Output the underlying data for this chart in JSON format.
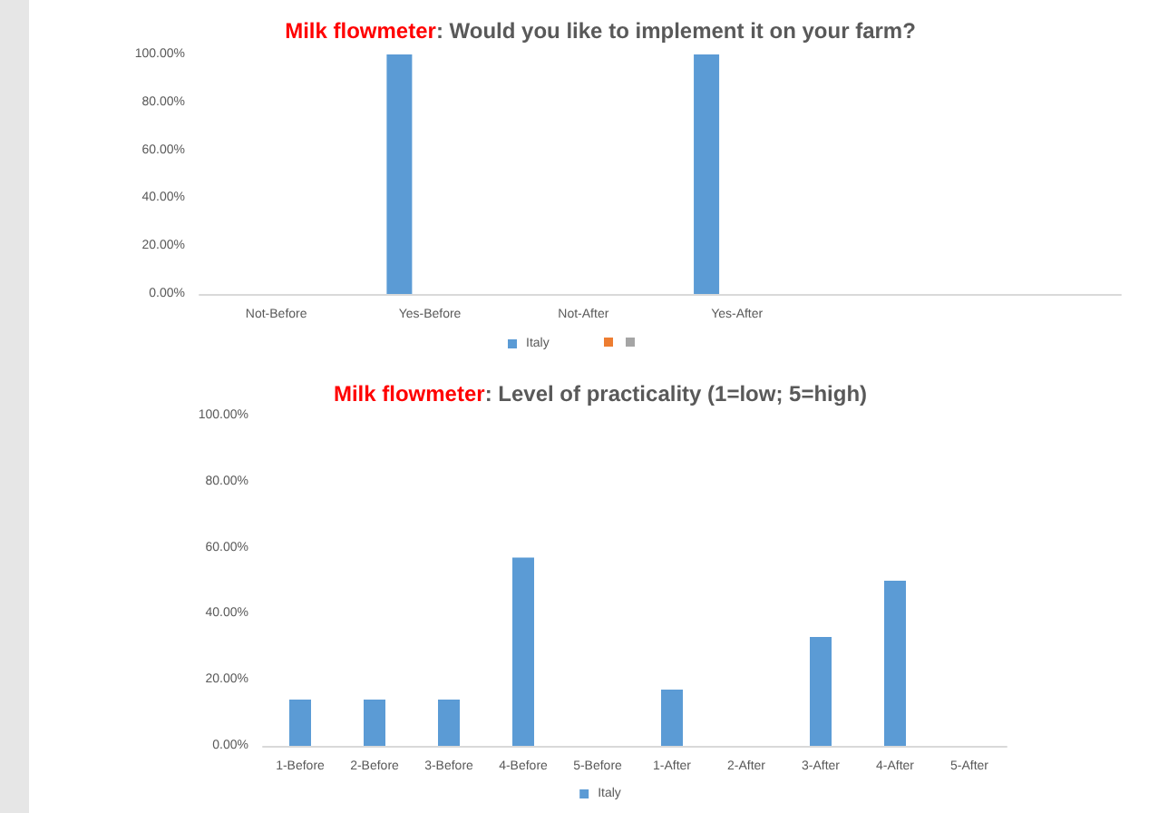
{
  "chart_data": [
    {
      "type": "bar",
      "title": "Milk flowmeter: Would you like to implement it on your farm?",
      "categories": [
        "Not-Before",
        "Yes-Before",
        "Not-After",
        "Yes-After",
        null,
        null
      ],
      "series": [
        {
          "name": "Italy",
          "color": "#5b9bd5",
          "values": [
            0,
            100,
            0,
            100,
            null,
            null
          ]
        },
        {
          "color": "#ed7d31",
          "values": [
            null,
            null,
            null,
            null,
            null,
            null
          ]
        },
        {
          "color": "#a5a5a5",
          "values": [
            null,
            null,
            null,
            null,
            null,
            null
          ]
        }
      ],
      "ylim": [
        0,
        100
      ],
      "yticks": [
        {
          "value": 0,
          "label": "0.00%"
        },
        {
          "value": 20,
          "label": "20.00%"
        },
        {
          "value": 40,
          "label": "40.00%"
        },
        {
          "value": 60,
          "label": "60.00%"
        },
        {
          "value": 80,
          "label": "80.00%"
        },
        {
          "value": 100,
          "label": "100.00%"
        }
      ],
      "grid": false,
      "legend": "bottom"
    },
    {
      "type": "bar",
      "title": "Milk flowmeter: Level of practicality (1=low; 5=high)",
      "categories": [
        "1-Before",
        "2-Before",
        "3-Before",
        "4-Before",
        "5-Before",
        "1-After",
        "2-After",
        "3-After",
        "4-After",
        "5-After"
      ],
      "series": [
        {
          "name": "Italy",
          "color": "#5b9bd5",
          "values": [
            14,
            14,
            14,
            57,
            0,
            17,
            0,
            33,
            50,
            0
          ]
        }
      ],
      "ylim": [
        0,
        100
      ],
      "yticks": [
        {
          "value": 0,
          "label": "0.00%"
        },
        {
          "value": 20,
          "label": "20.00%"
        },
        {
          "value": 40,
          "label": "40.00%"
        },
        {
          "value": 60,
          "label": "60.00%"
        },
        {
          "value": 80,
          "label": "80.00%"
        },
        {
          "value": 100,
          "label": "100.00%"
        }
      ],
      "grid": false,
      "legend": "bottom"
    }
  ]
}
